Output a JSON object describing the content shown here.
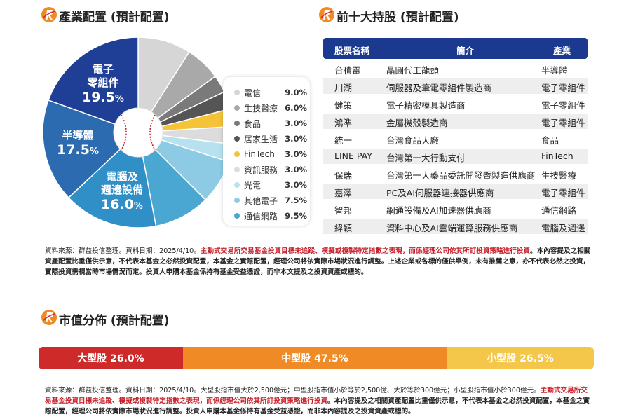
{
  "industry_section": {
    "title": "產業配置 (預計配置)"
  },
  "chart_data": {
    "type": "pie",
    "title": "產業配置 (預計配置)",
    "slices": [
      {
        "name": "電信",
        "value": 9.0,
        "display": "9.0%",
        "color": "#d6d6d6"
      },
      {
        "name": "生技醫療",
        "value": 6.0,
        "display": "6.0%",
        "color": "#a9a9a9"
      },
      {
        "name": "食品",
        "value": 3.0,
        "display": "3.0%",
        "color": "#7a7a7a"
      },
      {
        "name": "居家生活",
        "value": 3.0,
        "display": "3.0%",
        "color": "#555555"
      },
      {
        "name": "FinTech",
        "value": 3.0,
        "display": "3.0%",
        "color": "#f4c337"
      },
      {
        "name": "資訊服務",
        "value": 3.0,
        "display": "3.0%",
        "color": "#dcdcdc"
      },
      {
        "name": "光電",
        "value": 3.0,
        "display": "3.0%",
        "color": "#b7e1ee"
      },
      {
        "name": "其他電子",
        "value": 7.5,
        "display": "7.5%",
        "color": "#8ccbe3"
      },
      {
        "name": "通信網路",
        "value": 9.5,
        "display": "9.5%",
        "color": "#4aa7d2"
      },
      {
        "name": "電腦及週邊設備",
        "value": 16.0,
        "display": "16.0%",
        "color": "#2f8fc6"
      },
      {
        "name": "半導體",
        "value": 17.5,
        "display": "17.5%",
        "color": "#2d6bb1"
      },
      {
        "name": "電子零組件",
        "value": 19.5,
        "display": "19.5%",
        "color": "#1f3f97"
      }
    ],
    "inner_labels": [
      {
        "line1": "電子",
        "line2": "零組件",
        "num": "19.5",
        "pct": "%"
      },
      {
        "line1": "半導體",
        "line2": "",
        "num": "17.5",
        "pct": "%"
      },
      {
        "line1": "電腦及",
        "line2": "週邊設備",
        "num": "16.0",
        "pct": "%"
      }
    ]
  },
  "legend": [
    {
      "name": "電信",
      "value": "9.0%",
      "color": "#d6d6d6"
    },
    {
      "name": "生技醫療",
      "value": "6.0%",
      "color": "#a9a9a9"
    },
    {
      "name": "食品",
      "value": "3.0%",
      "color": "#7a7a7a"
    },
    {
      "name": "居家生活",
      "value": "3.0%",
      "color": "#555555"
    },
    {
      "name": "FinTech",
      "value": "3.0%",
      "color": "#f4c337"
    },
    {
      "name": "資訊服務",
      "value": "3.0%",
      "color": "#dcdcdc"
    },
    {
      "name": "光電",
      "value": "3.0%",
      "color": "#b7e1ee"
    },
    {
      "name": "其他電子",
      "value": "7.5%",
      "color": "#8ccbe3"
    },
    {
      "name": "通信網路",
      "value": "9.5%",
      "color": "#4aa7d2"
    }
  ],
  "holdings_section": {
    "title": "前十大持股 (預計配置)",
    "headers": [
      "股票名稱",
      "簡介",
      "產業"
    ],
    "rows": [
      [
        "台積電",
        "晶圓代工龍頭",
        "半導體"
      ],
      [
        "川湖",
        "伺服器及筆電零組件製造商",
        "電子零組件"
      ],
      [
        "健策",
        "電子精密模具製造商",
        "電子零組件"
      ],
      [
        "鴻準",
        "金屬機殼製造商",
        "電子零組件"
      ],
      [
        "統一",
        "台灣食品大廠",
        "食品"
      ],
      [
        "LINE PAY",
        "台灣第一大行動支付",
        "FinTech"
      ],
      [
        "保瑞",
        "台灣第一大藥品委託開發暨製造供應商",
        "生技醫療"
      ],
      [
        "嘉澤",
        "PC及AI伺服器連接器供應商",
        "電子零組件"
      ],
      [
        "智邦",
        "網通設備及AI加速器供應商",
        "通信網路"
      ],
      [
        "緯穎",
        "資料中心及AI雲端運算服務供應商",
        "電腦及週邊"
      ]
    ]
  },
  "note1": {
    "source": "資料來源：群益投信整理。資料日期：2025/4/10。",
    "red": "主動式交易所交易基金投資目標未追蹤、模擬或複製特定指數之表現，而係經理公司依其所訂投資策略進行投資",
    "rest": "。本內容提及之相關資產配置比重僅供示意，不代表本基金之必然投資配置，本基金之實際配置，經理公司將依實際市場狀況進行調整。上述企業或各標的僅供舉例，未有推薦之意，亦不代表必然之投資，實際投資需視當時市場情況而定。投資人申購本基金係持有基金受益憑證，而非本文提及之投資資產或標的。"
  },
  "market_cap_section": {
    "title": "市值分佈 (預計配置)",
    "bars": [
      {
        "label": "大型股 26.0%",
        "value": 26.0,
        "color": "#cf2a2a"
      },
      {
        "label": "中型股 47.5%",
        "value": 47.5,
        "color": "#f08a24"
      },
      {
        "label": "小型股 26.5%",
        "value": 26.5,
        "color": "#f4c64a"
      }
    ]
  },
  "note2": {
    "plain": "資料來源：群益投信整理。資料日期：2025/4/10。大型股指市值大於2,500億元；中型股指市值小於等於2,500億、大於等於300億元；小型股指市值小於300億元。",
    "red": "主動式交易所交易基金投資目標未追蹤、模擬或複製特定指數之表現，而係經理公司依其所訂投資策略進行投資",
    "rest": "。本內容提及之相關資產配置比重僅供示意，不代表本基金之必然投資配置，本基金之實際配置，經理公司將依實際市場狀況進行調整。投資人申購本基金係持有基金受益憑證，而非本內容提及之投資資產或標的。"
  }
}
